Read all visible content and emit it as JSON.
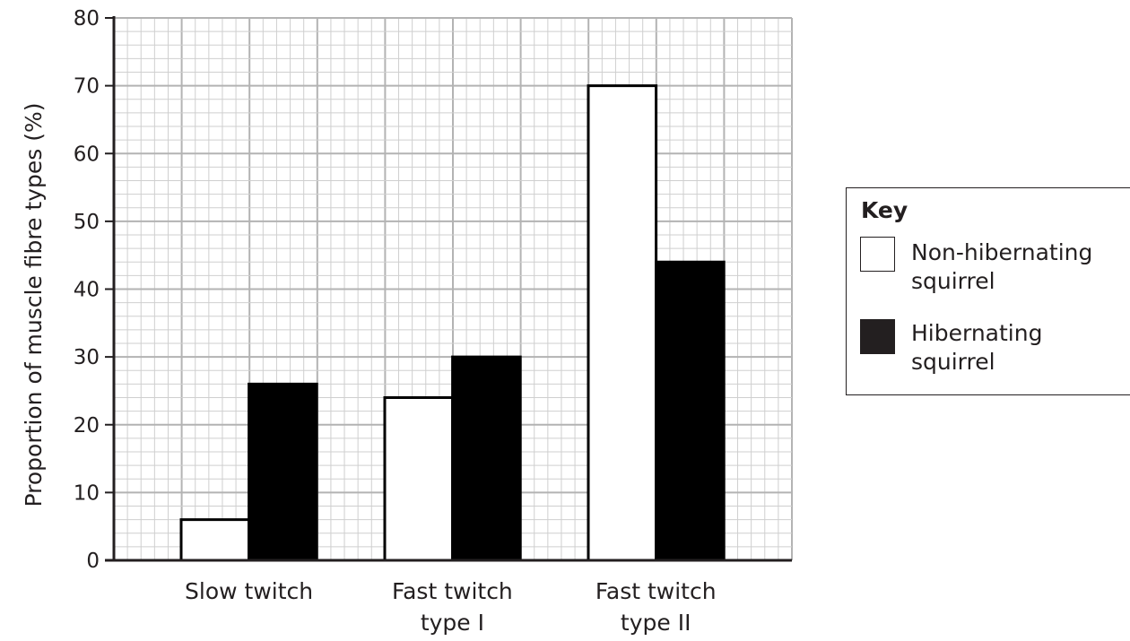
{
  "chart_data": {
    "type": "bar",
    "title": "",
    "xlabel": "",
    "ylabel": "Proportion of muscle fibre types (%)",
    "ylim": [
      0,
      80
    ],
    "yticks": [
      "0",
      "10",
      "20",
      "30",
      "40",
      "50",
      "60",
      "70",
      "80"
    ],
    "grid": true,
    "legend_position": "right",
    "categories": [
      {
        "line1": "Slow twitch",
        "line2": ""
      },
      {
        "line1": "Fast twitch",
        "line2": "type I"
      },
      {
        "line1": "Fast twitch",
        "line2": "type II"
      }
    ],
    "series": [
      {
        "name": "Non-hibernating squirrel",
        "values": [
          6,
          24,
          70
        ],
        "fill": "#ffffff"
      },
      {
        "name": "Hibernating squirrel",
        "values": [
          26,
          30,
          44
        ],
        "fill": "#000000"
      }
    ],
    "colors": {
      "axis": "#231f20",
      "grid_major": "#b3b3b3",
      "grid_minor": "#cfcfcf"
    }
  },
  "key": {
    "title": "Key",
    "items": [
      {
        "line1": "Non-hibernating",
        "line2": "squirrel"
      },
      {
        "line1": "Hibernating",
        "line2": "squirrel"
      }
    ]
  }
}
